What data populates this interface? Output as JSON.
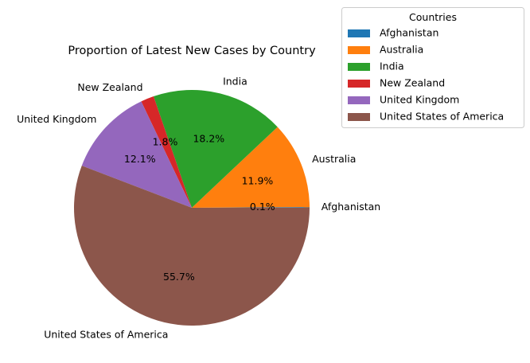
{
  "chart_data": {
    "type": "pie",
    "title": "Proportion of Latest New Cases by Country",
    "slices": [
      {
        "label": "Afghanistan",
        "percent": 0.1,
        "percent_label": "0.1%",
        "color": "#1f77b4"
      },
      {
        "label": "Australia",
        "percent": 11.9,
        "percent_label": "11.9%",
        "color": "#ff7f0e"
      },
      {
        "label": "India",
        "percent": 18.2,
        "percent_label": "18.2%",
        "color": "#2ca02c"
      },
      {
        "label": "New Zealand",
        "percent": 1.8,
        "percent_label": "1.8%",
        "color": "#d62728"
      },
      {
        "label": "United Kingdom",
        "percent": 12.1,
        "percent_label": "12.1%",
        "color": "#9467bd"
      },
      {
        "label": "United States of America",
        "percent": 55.7,
        "percent_label": "55.7%",
        "color": "#8c564b"
      }
    ],
    "start_angle_deg": 0,
    "direction": "counterclockwise",
    "legend": {
      "title": "Countries",
      "placement": "upper-right, outside plot"
    }
  }
}
